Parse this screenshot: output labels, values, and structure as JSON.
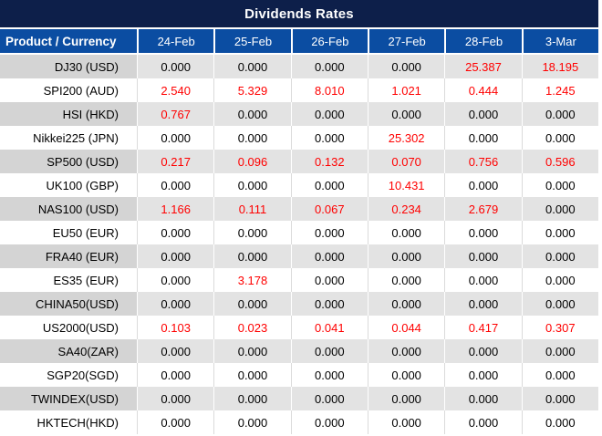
{
  "title_bar": {
    "title": "Dividends Rates"
  },
  "chart_data": {
    "type": "table",
    "title": "Dividends Rates",
    "columns": [
      "Product / Currency",
      "24-Feb",
      "25-Feb",
      "26-Feb",
      "27-Feb",
      "28-Feb",
      "3-Mar"
    ],
    "rows": [
      {
        "product": "DJ30 (USD)",
        "values": [
          "0.000",
          "0.000",
          "0.000",
          "0.000",
          "25.387",
          "18.195"
        ]
      },
      {
        "product": "SPI200 (AUD)",
        "values": [
          "2.540",
          "5.329",
          "8.010",
          "1.021",
          "0.444",
          "1.245"
        ]
      },
      {
        "product": "HSI (HKD)",
        "values": [
          "0.767",
          "0.000",
          "0.000",
          "0.000",
          "0.000",
          "0.000"
        ]
      },
      {
        "product": "Nikkei225 (JPN)",
        "values": [
          "0.000",
          "0.000",
          "0.000",
          "25.302",
          "0.000",
          "0.000"
        ]
      },
      {
        "product": "SP500 (USD)",
        "values": [
          "0.217",
          "0.096",
          "0.132",
          "0.070",
          "0.756",
          "0.596"
        ]
      },
      {
        "product": "UK100 (GBP)",
        "values": [
          "0.000",
          "0.000",
          "0.000",
          "10.431",
          "0.000",
          "0.000"
        ]
      },
      {
        "product": "NAS100 (USD)",
        "values": [
          "1.166",
          "0.111",
          "0.067",
          "0.234",
          "2.679",
          "0.000"
        ]
      },
      {
        "product": "EU50 (EUR)",
        "values": [
          "0.000",
          "0.000",
          "0.000",
          "0.000",
          "0.000",
          "0.000"
        ]
      },
      {
        "product": "FRA40 (EUR)",
        "values": [
          "0.000",
          "0.000",
          "0.000",
          "0.000",
          "0.000",
          "0.000"
        ]
      },
      {
        "product": "ES35 (EUR)",
        "values": [
          "0.000",
          "3.178",
          "0.000",
          "0.000",
          "0.000",
          "0.000"
        ]
      },
      {
        "product": "CHINA50(USD)",
        "values": [
          "0.000",
          "0.000",
          "0.000",
          "0.000",
          "0.000",
          "0.000"
        ]
      },
      {
        "product": "US2000(USD)",
        "values": [
          "0.103",
          "0.023",
          "0.041",
          "0.044",
          "0.417",
          "0.307"
        ]
      },
      {
        "product": "SA40(ZAR)",
        "values": [
          "0.000",
          "0.000",
          "0.000",
          "0.000",
          "0.000",
          "0.000"
        ]
      },
      {
        "product": "SGP20(SGD)",
        "values": [
          "0.000",
          "0.000",
          "0.000",
          "0.000",
          "0.000",
          "0.000"
        ]
      },
      {
        "product": "TWINDEX(USD)",
        "values": [
          "0.000",
          "0.000",
          "0.000",
          "0.000",
          "0.000",
          "0.000"
        ]
      },
      {
        "product": "HKTECH(HKD)",
        "values": [
          "0.000",
          "0.000",
          "0.000",
          "0.000",
          "0.000",
          "0.000"
        ]
      }
    ]
  },
  "colors": {
    "title_bg": "#0D1F4A",
    "header_bg": "#0B4DA2",
    "header_text": "#FFFFFF",
    "zero_value_text": "#000000",
    "nonzero_value_text": "#FF0000",
    "alt_row_product_bg": "#D4D4D4",
    "alt_row_data_bg": "#E3E3E3",
    "grid_line": "#DBDBDB"
  }
}
